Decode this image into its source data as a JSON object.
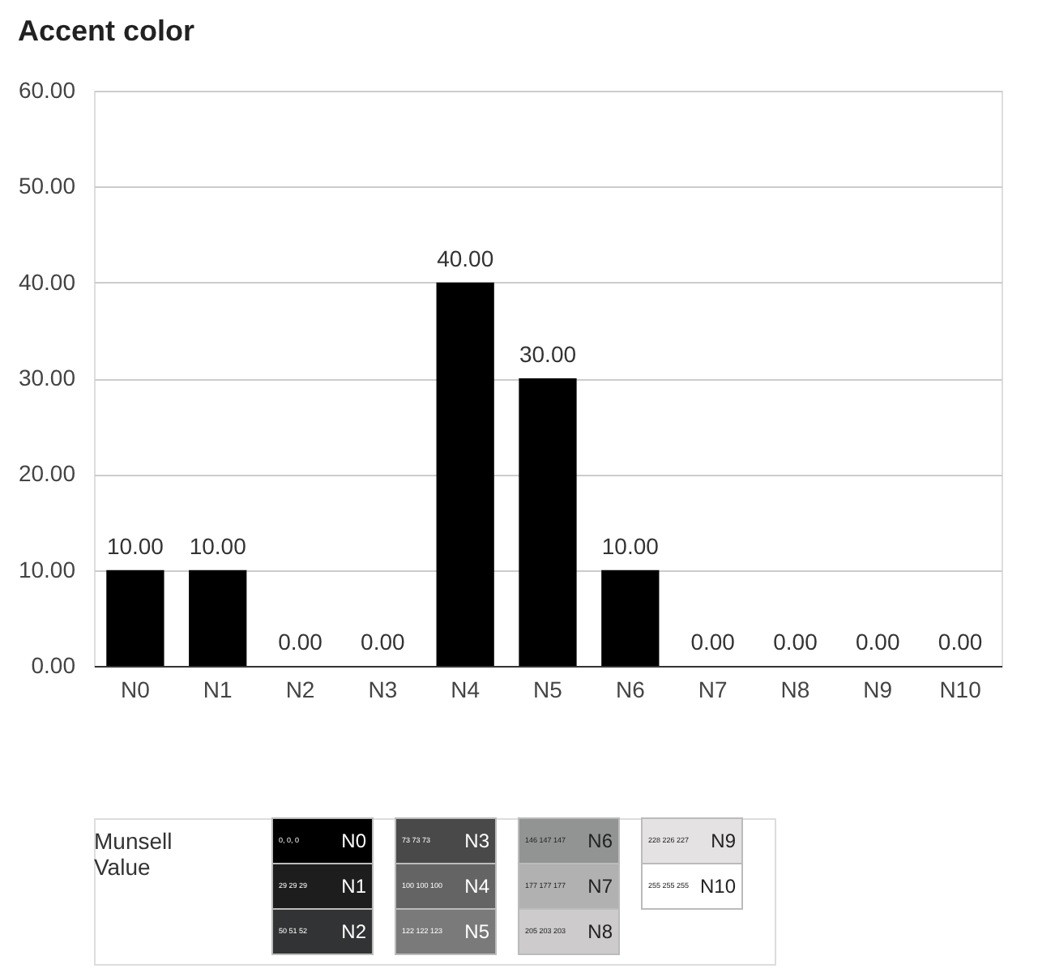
{
  "chart_data": [
    {
      "type": "bar",
      "title": "Accent color",
      "categories": [
        "N0",
        "N1",
        "N2",
        "N3",
        "N4",
        "N5",
        "N6",
        "N7",
        "N8",
        "N9",
        "N10"
      ],
      "values": [
        10,
        10,
        0,
        0,
        40,
        30,
        10,
        0,
        0,
        0,
        0
      ],
      "value_labels": [
        "10.00",
        "10.00",
        "0.00",
        "0.00",
        "40.00",
        "30.00",
        "10.00",
        "0.00",
        "0.00",
        "0.00",
        "0.00"
      ],
      "color": "#000000",
      "ylim": [
        0,
        60
      ],
      "yticks": [
        {
          "value": 0,
          "label": "0.00"
        },
        {
          "value": 10,
          "label": "10.00"
        },
        {
          "value": 20,
          "label": "20.00"
        },
        {
          "value": 30,
          "label": "30.00"
        },
        {
          "value": 40,
          "label": "40.00"
        },
        {
          "value": 50,
          "label": "50.00"
        },
        {
          "value": 60,
          "label": "60.00"
        }
      ],
      "grid": "y"
    },
    {
      "type": "other",
      "title": "Munsell Value",
      "categories": [
        "N0",
        "N1",
        "N2",
        "N3",
        "N4",
        "N5",
        "N6",
        "N7",
        "N8",
        "N9",
        "N10"
      ],
      "colors": [
        "#000000",
        "#1d1d1d",
        "#323334",
        "#494949",
        "#646464",
        "#7a7a7b",
        "#929393",
        "#b1b1b1",
        "#cdcbcb",
        "#e4e2e3",
        "#ffffff"
      ],
      "annotations": [
        "0, 0, 0",
        "29 29 29",
        "50 51 52",
        "73 73 73",
        "100 100 100",
        "122 122 123",
        "146 147 147",
        "177 177 177",
        "205 203 203",
        "228 226 227",
        "255 255 255"
      ]
    }
  ]
}
